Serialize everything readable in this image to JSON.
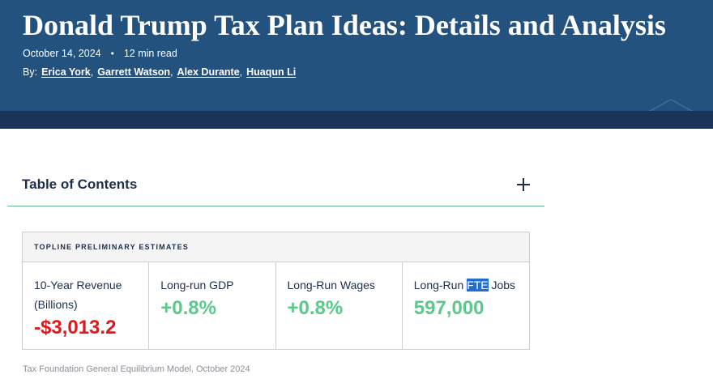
{
  "article": {
    "title": "Donald Trump Tax Plan Ideas: Details and Analysis",
    "date": "October 14, 2024",
    "separator": "•",
    "read_time": "12 min read",
    "by_label": "By:",
    "authors": [
      "Erica York",
      "Garrett Watson",
      "Alex Durante",
      "Huaqun Li"
    ]
  },
  "toc": {
    "title": "Table of Contents",
    "toggle_icon": "plus-icon"
  },
  "estimates": {
    "header": "TOPLINE PRELIMINARY ESTIMATES",
    "revenue": {
      "label_line1": "10-Year Revenue",
      "label_line2": "(Billions)",
      "value": "-$3,013.2"
    },
    "gdp": {
      "label": "Long-run GDP",
      "value": "+0.8%"
    },
    "wages": {
      "label": "Long-Run Wages",
      "value": "+0.8%"
    },
    "jobs": {
      "label_prefix": "Long-Run ",
      "label_highlight": "FTE",
      "label_suffix": " Jobs",
      "value": "597,000"
    }
  },
  "source": "Tax Foundation General Equilibrium Model, October 2024",
  "colors": {
    "hero": "#24527f",
    "hero_band": "#1a3457",
    "negative": "#e3161b",
    "positive": "#5bc98a",
    "selection": "#1f6fd1",
    "divider": "#5fb88e"
  }
}
